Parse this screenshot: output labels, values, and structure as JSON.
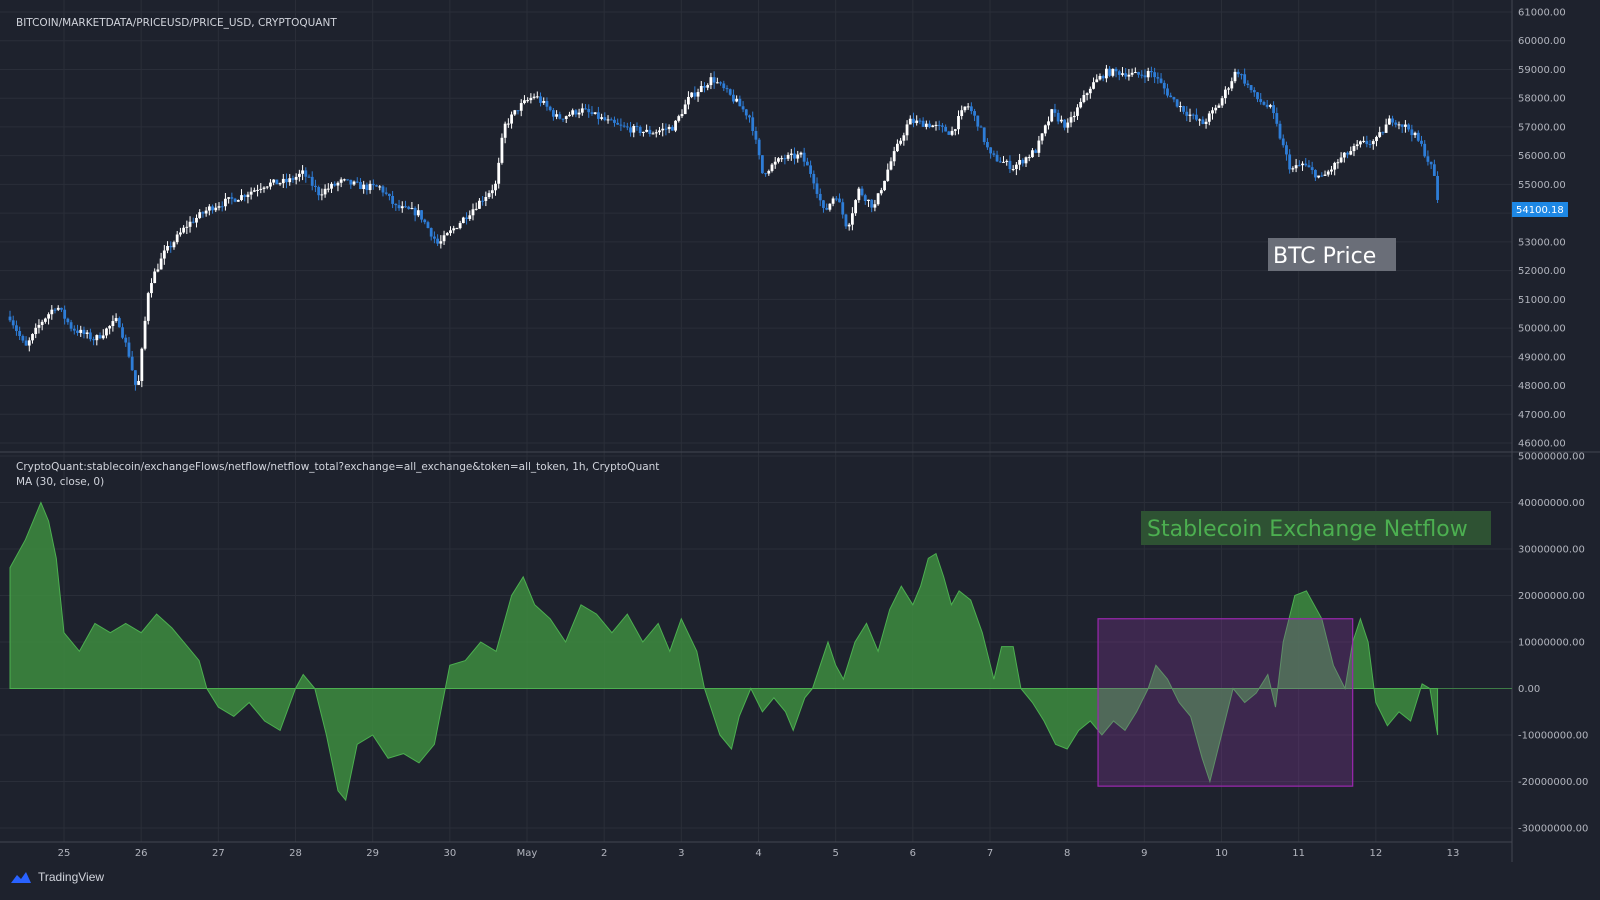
{
  "price_pane": {
    "title": "BITCOIN/MARKETDATA/PRICEUSD/PRICE_USD, CRYPTOQUANT",
    "annotation": "BTC Price",
    "last_price_label": "54100.18",
    "y_ticks": [
      "61000.00",
      "60000.00",
      "59000.00",
      "58000.00",
      "57000.00",
      "56000.00",
      "55000.00",
      "54000.00",
      "53000.00",
      "52000.00",
      "51000.00",
      "50000.00",
      "49000.00",
      "48000.00",
      "47000.00",
      "46000.00"
    ]
  },
  "netflow_pane": {
    "title_line1": "CryptoQuant:stablecoin/exchangeFlows/netflow/netflow_total?exchange=all_exchange&token=all_token, 1h, CryptoQuant",
    "title_line2": "MA (30, close, 0)",
    "annotation": "Stablecoin Exchange Netflow",
    "y_ticks": [
      "50000000.00",
      "40000000.00",
      "30000000.00",
      "20000000.00",
      "10000000.00",
      "0.00",
      "-10000000.00",
      "-20000000.00",
      "-30000000.00"
    ]
  },
  "x_axis": {
    "ticks": [
      "25",
      "26",
      "27",
      "28",
      "29",
      "30",
      "May",
      "2",
      "3",
      "4",
      "5",
      "6",
      "7",
      "8",
      "9",
      "10",
      "11",
      "12",
      "13"
    ]
  },
  "watermark": "TradingView",
  "colors": {
    "background": "#1e222d",
    "up_candle": "#ffffff",
    "down_candle": "#2e7dd7",
    "area_fill": "#3d8c40",
    "highlight_box": "#8e3aa6",
    "price_label_bg": "#1e88e5"
  },
  "chart_data": [
    {
      "type": "candlestick",
      "title": "BITCOIN/MARKETDATA/PRICEUSD/PRICE_USD, CRYPTOQUANT",
      "x_ticks": [
        "25",
        "26",
        "27",
        "28",
        "29",
        "30",
        "May",
        "2",
        "3",
        "4",
        "5",
        "6",
        "7",
        "8",
        "9",
        "10",
        "11",
        "12",
        "13"
      ],
      "ylim": [
        46000,
        61000
      ],
      "last_value": 54100.18,
      "close_path": [
        {
          "x": 24.3,
          "y": 50400
        },
        {
          "x": 24.5,
          "y": 49300
        },
        {
          "x": 24.7,
          "y": 50200
        },
        {
          "x": 24.9,
          "y": 50800
        },
        {
          "x": 25.1,
          "y": 50000
        },
        {
          "x": 25.4,
          "y": 49600
        },
        {
          "x": 25.7,
          "y": 50300
        },
        {
          "x": 25.85,
          "y": 49000
        },
        {
          "x": 25.95,
          "y": 47700
        },
        {
          "x": 26.1,
          "y": 51500
        },
        {
          "x": 26.3,
          "y": 52600
        },
        {
          "x": 26.6,
          "y": 53600
        },
        {
          "x": 26.9,
          "y": 54200
        },
        {
          "x": 27.3,
          "y": 54600
        },
        {
          "x": 27.6,
          "y": 55000
        },
        {
          "x": 27.9,
          "y": 55100
        },
        {
          "x": 28.1,
          "y": 55400
        },
        {
          "x": 28.3,
          "y": 54700
        },
        {
          "x": 28.6,
          "y": 55100
        },
        {
          "x": 28.9,
          "y": 54900
        },
        {
          "x": 29.1,
          "y": 54900
        },
        {
          "x": 29.3,
          "y": 54200
        },
        {
          "x": 29.6,
          "y": 54000
        },
        {
          "x": 29.85,
          "y": 52900
        },
        {
          "x": 30.1,
          "y": 53600
        },
        {
          "x": 30.35,
          "y": 54300
        },
        {
          "x": 30.6,
          "y": 55000
        },
        {
          "x": 30.7,
          "y": 57000
        },
        {
          "x": 30.9,
          "y": 57700
        },
        {
          "x": 31.1,
          "y": 58100
        },
        {
          "x": 31.4,
          "y": 57300
        },
        {
          "x": 31.7,
          "y": 57600
        },
        {
          "x": 32.2,
          "y": 57000
        },
        {
          "x": 32.6,
          "y": 56800
        },
        {
          "x": 32.9,
          "y": 57000
        },
        {
          "x": 33.1,
          "y": 58000
        },
        {
          "x": 33.4,
          "y": 58700
        },
        {
          "x": 33.7,
          "y": 57900
        },
        {
          "x": 33.9,
          "y": 57300
        },
        {
          "x": 34.05,
          "y": 55400
        },
        {
          "x": 34.3,
          "y": 55900
        },
        {
          "x": 34.55,
          "y": 56000
        },
        {
          "x": 34.7,
          "y": 55300
        },
        {
          "x": 34.85,
          "y": 54000
        },
        {
          "x": 35.0,
          "y": 54700
        },
        {
          "x": 35.15,
          "y": 53500
        },
        {
          "x": 35.3,
          "y": 54800
        },
        {
          "x": 35.5,
          "y": 54200
        },
        {
          "x": 35.7,
          "y": 55700
        },
        {
          "x": 35.95,
          "y": 57200
        },
        {
          "x": 36.2,
          "y": 57100
        },
        {
          "x": 36.5,
          "y": 56800
        },
        {
          "x": 36.7,
          "y": 57800
        },
        {
          "x": 36.85,
          "y": 57100
        },
        {
          "x": 37.0,
          "y": 56000
        },
        {
          "x": 37.3,
          "y": 55600
        },
        {
          "x": 37.6,
          "y": 56200
        },
        {
          "x": 37.8,
          "y": 57500
        },
        {
          "x": 38.0,
          "y": 57000
        },
        {
          "x": 38.3,
          "y": 58400
        },
        {
          "x": 38.5,
          "y": 58900
        },
        {
          "x": 38.7,
          "y": 58900
        },
        {
          "x": 38.9,
          "y": 58800
        },
        {
          "x": 39.1,
          "y": 58900
        },
        {
          "x": 39.35,
          "y": 58000
        },
        {
          "x": 39.55,
          "y": 57500
        },
        {
          "x": 39.75,
          "y": 57100
        },
        {
          "x": 39.95,
          "y": 57700
        },
        {
          "x": 40.2,
          "y": 59000
        },
        {
          "x": 40.45,
          "y": 58000
        },
        {
          "x": 40.65,
          "y": 57600
        },
        {
          "x": 40.8,
          "y": 56300
        },
        {
          "x": 40.9,
          "y": 55500
        },
        {
          "x": 41.05,
          "y": 55700
        },
        {
          "x": 41.3,
          "y": 55200
        },
        {
          "x": 41.55,
          "y": 55900
        },
        {
          "x": 41.8,
          "y": 56400
        },
        {
          "x": 42.0,
          "y": 56500
        },
        {
          "x": 42.2,
          "y": 57300
        },
        {
          "x": 42.45,
          "y": 56900
        },
        {
          "x": 42.6,
          "y": 56300
        },
        {
          "x": 42.75,
          "y": 55400
        },
        {
          "x": 42.8,
          "y": 54500
        }
      ]
    },
    {
      "type": "area",
      "title_line1": "CryptoQuant:stablecoin/exchangeFlows/netflow/netflow_total?exchange=all_exchange&token=all_token, 1h, CryptoQuant",
      "title_line2": "MA (30, close, 0)",
      "x_ticks": [
        "25",
        "26",
        "27",
        "28",
        "29",
        "30",
        "May",
        "2",
        "3",
        "4",
        "5",
        "6",
        "7",
        "8",
        "9",
        "10",
        "11",
        "12",
        "13"
      ],
      "ylim": [
        -30000000,
        50000000
      ],
      "highlight_region": {
        "x": [
          38.4,
          41.7
        ],
        "y": [
          -21000000,
          15000000
        ]
      },
      "series": [
        {
          "points": [
            {
              "x": 24.3,
              "y": 26000000
            },
            {
              "x": 24.5,
              "y": 32000000
            },
            {
              "x": 24.7,
              "y": 40000000
            },
            {
              "x": 24.8,
              "y": 36000000
            },
            {
              "x": 24.9,
              "y": 28000000
            },
            {
              "x": 25.0,
              "y": 12000000
            },
            {
              "x": 25.2,
              "y": 8000000
            },
            {
              "x": 25.4,
              "y": 14000000
            },
            {
              "x": 25.6,
              "y": 12000000
            },
            {
              "x": 25.8,
              "y": 14000000
            },
            {
              "x": 26.0,
              "y": 12000000
            },
            {
              "x": 26.2,
              "y": 16000000
            },
            {
              "x": 26.4,
              "y": 13000000
            },
            {
              "x": 26.6,
              "y": 9000000
            },
            {
              "x": 26.75,
              "y": 6000000
            },
            {
              "x": 26.85,
              "y": 0
            },
            {
              "x": 27.0,
              "y": -4000000
            },
            {
              "x": 27.2,
              "y": -6000000
            },
            {
              "x": 27.4,
              "y": -3000000
            },
            {
              "x": 27.6,
              "y": -7000000
            },
            {
              "x": 27.8,
              "y": -9000000
            },
            {
              "x": 28.0,
              "y": 0
            },
            {
              "x": 28.1,
              "y": 3000000
            },
            {
              "x": 28.25,
              "y": 0
            },
            {
              "x": 28.4,
              "y": -10000000
            },
            {
              "x": 28.55,
              "y": -22000000
            },
            {
              "x": 28.65,
              "y": -24000000
            },
            {
              "x": 28.8,
              "y": -12000000
            },
            {
              "x": 29.0,
              "y": -10000000
            },
            {
              "x": 29.2,
              "y": -15000000
            },
            {
              "x": 29.4,
              "y": -14000000
            },
            {
              "x": 29.6,
              "y": -16000000
            },
            {
              "x": 29.8,
              "y": -12000000
            },
            {
              "x": 30.0,
              "y": 5000000
            },
            {
              "x": 30.2,
              "y": 6000000
            },
            {
              "x": 30.4,
              "y": 10000000
            },
            {
              "x": 30.6,
              "y": 8000000
            },
            {
              "x": 30.8,
              "y": 20000000
            },
            {
              "x": 30.95,
              "y": 24000000
            },
            {
              "x": 31.1,
              "y": 18000000
            },
            {
              "x": 31.3,
              "y": 15000000
            },
            {
              "x": 31.5,
              "y": 10000000
            },
            {
              "x": 31.7,
              "y": 18000000
            },
            {
              "x": 31.9,
              "y": 16000000
            },
            {
              "x": 32.1,
              "y": 12000000
            },
            {
              "x": 32.3,
              "y": 16000000
            },
            {
              "x": 32.5,
              "y": 10000000
            },
            {
              "x": 32.7,
              "y": 14000000
            },
            {
              "x": 32.85,
              "y": 8000000
            },
            {
              "x": 33.0,
              "y": 15000000
            },
            {
              "x": 33.2,
              "y": 8000000
            },
            {
              "x": 33.3,
              "y": 0
            },
            {
              "x": 33.5,
              "y": -10000000
            },
            {
              "x": 33.65,
              "y": -13000000
            },
            {
              "x": 33.75,
              "y": -6000000
            },
            {
              "x": 33.9,
              "y": 0
            },
            {
              "x": 34.05,
              "y": -5000000
            },
            {
              "x": 34.2,
              "y": -2000000
            },
            {
              "x": 34.35,
              "y": -5000000
            },
            {
              "x": 34.45,
              "y": -9000000
            },
            {
              "x": 34.6,
              "y": -2000000
            },
            {
              "x": 34.7,
              "y": 0
            },
            {
              "x": 34.8,
              "y": 5000000
            },
            {
              "x": 34.9,
              "y": 10000000
            },
            {
              "x": 35.0,
              "y": 5000000
            },
            {
              "x": 35.1,
              "y": 2000000
            },
            {
              "x": 35.25,
              "y": 10000000
            },
            {
              "x": 35.4,
              "y": 14000000
            },
            {
              "x": 35.55,
              "y": 8000000
            },
            {
              "x": 35.7,
              "y": 17000000
            },
            {
              "x": 35.85,
              "y": 22000000
            },
            {
              "x": 36.0,
              "y": 18000000
            },
            {
              "x": 36.1,
              "y": 22000000
            },
            {
              "x": 36.2,
              "y": 28000000
            },
            {
              "x": 36.3,
              "y": 29000000
            },
            {
              "x": 36.4,
              "y": 24000000
            },
            {
              "x": 36.5,
              "y": 18000000
            },
            {
              "x": 36.6,
              "y": 21000000
            },
            {
              "x": 36.75,
              "y": 19000000
            },
            {
              "x": 36.9,
              "y": 12000000
            },
            {
              "x": 37.05,
              "y": 2000000
            },
            {
              "x": 37.15,
              "y": 9000000
            },
            {
              "x": 37.3,
              "y": 9000000
            },
            {
              "x": 37.4,
              "y": 0
            },
            {
              "x": 37.55,
              "y": -3000000
            },
            {
              "x": 37.7,
              "y": -7000000
            },
            {
              "x": 37.85,
              "y": -12000000
            },
            {
              "x": 38.0,
              "y": -13000000
            },
            {
              "x": 38.15,
              "y": -9000000
            },
            {
              "x": 38.3,
              "y": -7000000
            },
            {
              "x": 38.45,
              "y": -10000000
            },
            {
              "x": 38.6,
              "y": -7000000
            },
            {
              "x": 38.75,
              "y": -9000000
            },
            {
              "x": 38.9,
              "y": -5000000
            },
            {
              "x": 39.05,
              "y": 0
            },
            {
              "x": 39.15,
              "y": 5000000
            },
            {
              "x": 39.3,
              "y": 2000000
            },
            {
              "x": 39.45,
              "y": -3000000
            },
            {
              "x": 39.6,
              "y": -6000000
            },
            {
              "x": 39.75,
              "y": -15000000
            },
            {
              "x": 39.85,
              "y": -20000000
            },
            {
              "x": 40.0,
              "y": -10000000
            },
            {
              "x": 40.15,
              "y": 0
            },
            {
              "x": 40.3,
              "y": -3000000
            },
            {
              "x": 40.45,
              "y": -1000000
            },
            {
              "x": 40.6,
              "y": 3000000
            },
            {
              "x": 40.7,
              "y": -4000000
            },
            {
              "x": 40.8,
              "y": 10000000
            },
            {
              "x": 40.95,
              "y": 20000000
            },
            {
              "x": 41.1,
              "y": 21000000
            },
            {
              "x": 41.3,
              "y": 15000000
            },
            {
              "x": 41.45,
              "y": 5000000
            },
            {
              "x": 41.6,
              "y": 0
            },
            {
              "x": 41.7,
              "y": 10000000
            },
            {
              "x": 41.8,
              "y": 15000000
            },
            {
              "x": 41.9,
              "y": 10000000
            },
            {
              "x": 42.0,
              "y": -3000000
            },
            {
              "x": 42.15,
              "y": -8000000
            },
            {
              "x": 42.3,
              "y": -5000000
            },
            {
              "x": 42.45,
              "y": -7000000
            },
            {
              "x": 42.6,
              "y": 1000000
            },
            {
              "x": 42.7,
              "y": 0
            },
            {
              "x": 42.8,
              "y": -10000000
            }
          ]
        }
      ]
    }
  ]
}
